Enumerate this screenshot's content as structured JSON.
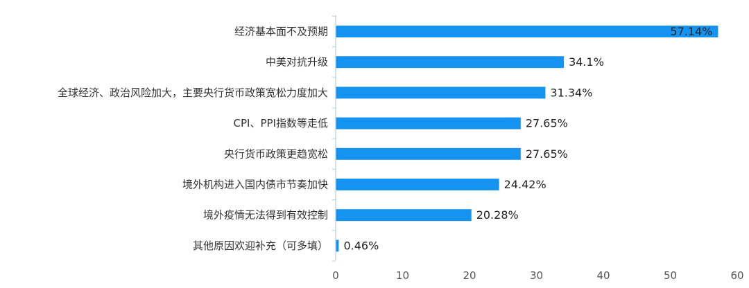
{
  "chart_data": {
    "type": "bar",
    "orientation": "horizontal",
    "categories": [
      "经济基本面不及预期",
      "中美对抗升级",
      "全球经济、政治风险加大，主要央行货币政策宽松力度加大",
      "CPI、PPI指数等走低",
      "央行货币政策更趋宽松",
      "境外机构进入国内债市节奏加快",
      "境外疫情无法得到有效控制",
      "其他原因欢迎补充（可多填）"
    ],
    "values": [
      57.14,
      34.1,
      31.34,
      27.65,
      27.65,
      24.42,
      20.28,
      0.46
    ],
    "value_labels": [
      "57.14%",
      "34.1%",
      "31.34%",
      "27.65%",
      "27.65%",
      "24.42%",
      "20.28%",
      "0.46%"
    ],
    "xlim": [
      0,
      60
    ],
    "xticks": [
      0,
      10,
      20,
      30,
      40,
      50,
      60
    ],
    "grid": false,
    "colors": {
      "bar": "#1493f0",
      "axis": "#b8cbe0",
      "text": "#333333"
    }
  }
}
